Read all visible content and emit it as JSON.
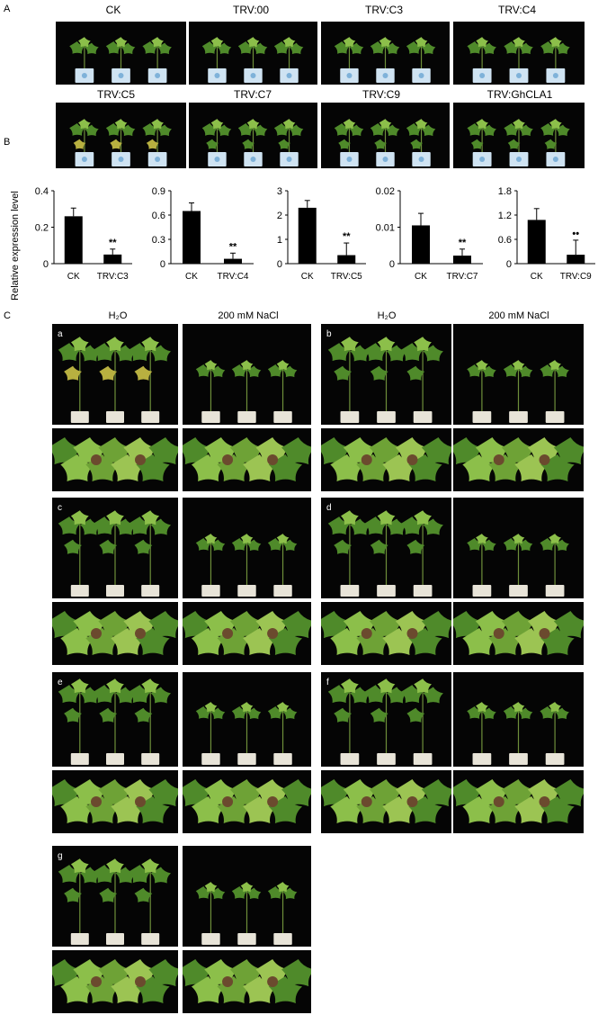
{
  "panels": {
    "a": "A",
    "b": "B",
    "c": "C"
  },
  "panelA": {
    "row1": [
      "CK",
      "TRV:00",
      "TRV:C3",
      "TRV:C4"
    ],
    "row2": [
      "TRV:C5",
      "TRV:C7",
      "TRV:C9",
      "TRV:GhCLA1"
    ]
  },
  "panelB": {
    "ylabel": "Relative expression level"
  },
  "chart_data": [
    {
      "type": "bar",
      "categories": [
        "CK",
        "TRV:C3"
      ],
      "values": [
        0.26,
        0.05
      ],
      "errors": [
        0.045,
        0.03
      ],
      "ylim": [
        0,
        0.4
      ],
      "yticks": [
        "0",
        "0.2",
        "0.4"
      ],
      "significance": "**",
      "ylabel": "Relative expression level"
    },
    {
      "type": "bar",
      "categories": [
        "CK",
        "TRV:C4"
      ],
      "values": [
        0.65,
        0.06
      ],
      "errors": [
        0.1,
        0.07
      ],
      "ylim": [
        0,
        0.9
      ],
      "yticks": [
        "0",
        "0.3",
        "0.6",
        "0.9"
      ],
      "significance": "**"
    },
    {
      "type": "bar",
      "categories": [
        "CK",
        "TRV:C5"
      ],
      "values": [
        2.3,
        0.35
      ],
      "errors": [
        0.3,
        0.5
      ],
      "ylim": [
        0,
        3
      ],
      "yticks": [
        "0",
        "1",
        "2",
        "3"
      ],
      "significance": "**"
    },
    {
      "type": "bar",
      "categories": [
        "CK",
        "TRV:C7"
      ],
      "values": [
        0.0105,
        0.0022
      ],
      "errors": [
        0.0033,
        0.0018
      ],
      "ylim": [
        0,
        0.02
      ],
      "yticks": [
        "0",
        "0.01",
        "0.02"
      ],
      "significance": "**"
    },
    {
      "type": "bar",
      "categories": [
        "CK",
        "TRV:C9"
      ],
      "values": [
        1.08,
        0.22
      ],
      "errors": [
        0.28,
        0.36
      ],
      "ylim": [
        0,
        1.8
      ],
      "yticks": [
        "0",
        "0.6",
        "1.2",
        "1.8"
      ],
      "significance": "••"
    }
  ],
  "panelC": {
    "conditions": [
      "H₂O",
      "200 mM NaCl"
    ],
    "groups": [
      "a",
      "b",
      "c",
      "d",
      "e",
      "f",
      "g"
    ]
  },
  "colors": {
    "background": "#050505",
    "leaf": "#4f8a2a",
    "leaf_light": "#8cbf4a",
    "pot": "#e8e4d8",
    "pot_blue": "#cfe3f2"
  }
}
